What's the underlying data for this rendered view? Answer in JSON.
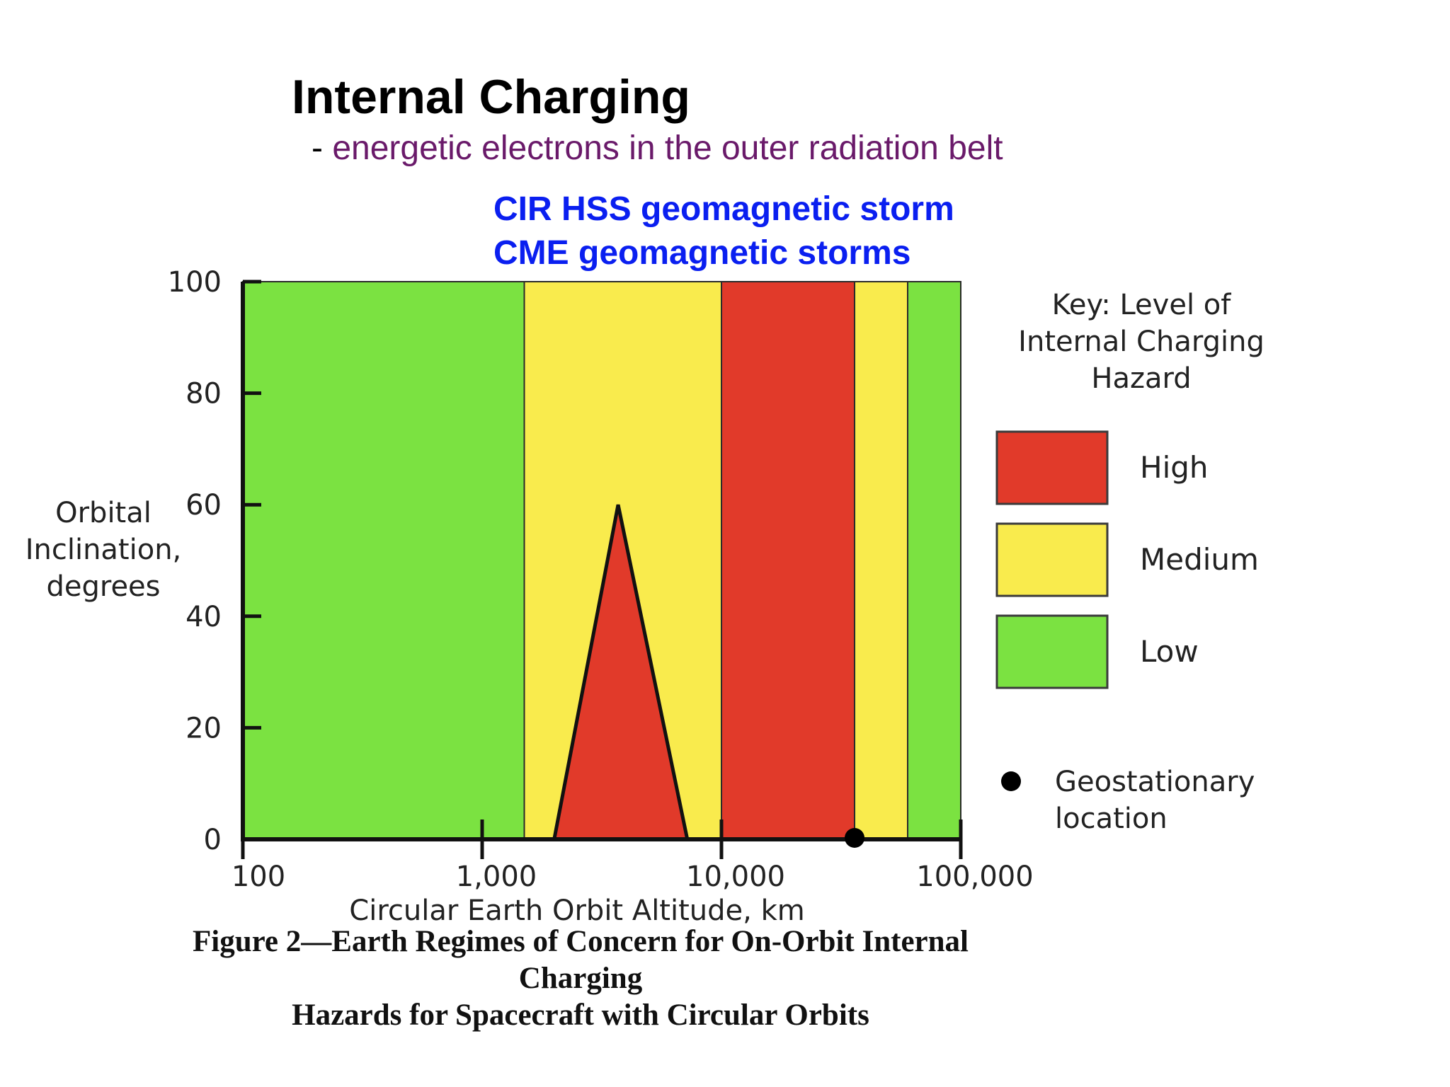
{
  "slide": {
    "title": "Internal Charging",
    "subtitle_prefix": "- ",
    "subtitle": "energetic electrons in the outer radiation belt",
    "storm_lines": [
      "CIR HSS geomagnetic storm",
      "CME geomagnetic storms"
    ],
    "colors": {
      "subtitle": "#6a1a6a",
      "storm_lines": "#0a1ff0"
    }
  },
  "chart_data": {
    "type": "area",
    "xlabel": "Circular Earth Orbit Altitude, km",
    "ylabel": [
      "Orbital",
      "Inclination,",
      "degrees"
    ],
    "x_scale": "log",
    "xlim": [
      100,
      100000
    ],
    "ylim": [
      0,
      100
    ],
    "x_ticks": [
      {
        "value": 100,
        "label": "100"
      },
      {
        "value": 1000,
        "label": "1,000"
      },
      {
        "value": 10000,
        "label": "10,000"
      },
      {
        "value": 100000,
        "label": "100,000"
      }
    ],
    "y_ticks": [
      {
        "value": 0,
        "label": "0"
      },
      {
        "value": 20,
        "label": "20"
      },
      {
        "value": 40,
        "label": "40"
      },
      {
        "value": 60,
        "label": "60"
      },
      {
        "value": 80,
        "label": "80"
      },
      {
        "value": 100,
        "label": "100"
      }
    ],
    "regions": [
      {
        "level": "Low",
        "x_from": 100,
        "x_to": 1500
      },
      {
        "level": "Medium",
        "x_from": 1500,
        "x_to": 10000
      },
      {
        "level": "High",
        "x_from": 10000,
        "x_to": 36000
      },
      {
        "level": "Medium",
        "x_from": 36000,
        "x_to": 60000
      },
      {
        "level": "Low",
        "x_from": 60000,
        "x_to": 100000
      }
    ],
    "triangle": {
      "level": "High",
      "points": [
        [
          2000,
          0
        ],
        [
          3700,
          60
        ],
        [
          7200,
          0
        ]
      ]
    },
    "geostationary_point": {
      "x": 36000,
      "y": 0
    },
    "legend": {
      "title": [
        "Key:  Level of",
        "Internal Charging",
        "Hazard"
      ],
      "items": [
        {
          "label": "High",
          "color": "#e13a2a"
        },
        {
          "label": "Medium",
          "color": "#f9eb4d"
        },
        {
          "label": "Low",
          "color": "#7be241"
        }
      ],
      "marker_label": [
        "Geostationary",
        "location"
      ]
    },
    "colors": {
      "High": "#e13a2a",
      "Medium": "#f9eb4d",
      "Low": "#7be241"
    }
  },
  "figure": {
    "caption": [
      "Figure 2—Earth Regimes of Concern for On-Orbit Internal Charging",
      "Hazards for Spacecraft with Circular Orbits"
    ]
  }
}
